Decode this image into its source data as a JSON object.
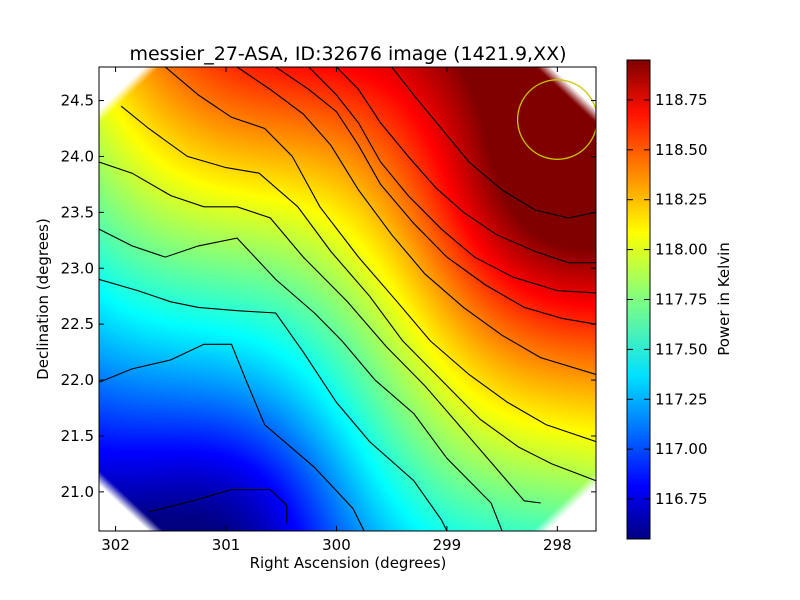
{
  "chart_data": {
    "type": "heatmap",
    "title": "messier_27-ASA, ID:32676 image (1421.9,XX)",
    "xlabel": "Right Ascension (degrees)",
    "ylabel": "Declination (degrees)",
    "xlim": [
      302.15,
      297.65
    ],
    "ylim": [
      20.65,
      24.8
    ],
    "x_ticks": [
      {
        "value": 302,
        "label": "302"
      },
      {
        "value": 301,
        "label": "301"
      },
      {
        "value": 300,
        "label": "300"
      },
      {
        "value": 299,
        "label": "299"
      },
      {
        "value": 298,
        "label": "298"
      }
    ],
    "y_ticks": [
      {
        "value": 21.0,
        "label": "21.0"
      },
      {
        "value": 21.5,
        "label": "21.5"
      },
      {
        "value": 22.0,
        "label": "22.0"
      },
      {
        "value": 22.5,
        "label": "22.5"
      },
      {
        "value": 23.0,
        "label": "23.0"
      },
      {
        "value": 23.5,
        "label": "23.5"
      },
      {
        "value": 24.0,
        "label": "24.0"
      },
      {
        "value": 24.5,
        "label": "24.5"
      }
    ],
    "colorbar": {
      "label": "Power in Kelvin",
      "colormap": "jet",
      "range": [
        116.55,
        118.95
      ],
      "ticks": [
        {
          "value": 116.75,
          "label": "116.75"
        },
        {
          "value": 117.0,
          "label": "117.00"
        },
        {
          "value": 117.25,
          "label": "117.25"
        },
        {
          "value": 117.5,
          "label": "117.50"
        },
        {
          "value": 117.75,
          "label": "117.75"
        },
        {
          "value": 118.0,
          "label": "118.00"
        },
        {
          "value": 118.25,
          "label": "118.25"
        },
        {
          "value": 118.5,
          "label": "118.50"
        },
        {
          "value": 118.75,
          "label": "118.75"
        }
      ]
    },
    "contour_lines": [
      [
        [
          301.7,
          20.82
        ],
        [
          301.3,
          20.92
        ],
        [
          300.95,
          21.02
        ],
        [
          300.6,
          21.02
        ],
        [
          300.45,
          20.88
        ],
        [
          300.45,
          20.72
        ]
      ],
      [
        [
          302.15,
          21.98
        ],
        [
          301.85,
          22.1
        ],
        [
          301.5,
          22.18
        ],
        [
          301.2,
          22.32
        ],
        [
          300.95,
          22.32
        ],
        [
          300.82,
          22.0
        ],
        [
          300.65,
          21.6
        ],
        [
          300.2,
          21.22
        ],
        [
          299.85,
          20.85
        ],
        [
          299.75,
          20.65
        ]
      ],
      [
        [
          302.15,
          22.9
        ],
        [
          301.8,
          22.8
        ],
        [
          301.5,
          22.7
        ],
        [
          301.25,
          22.65
        ],
        [
          300.9,
          22.62
        ],
        [
          300.55,
          22.6
        ],
        [
          300.3,
          22.25
        ],
        [
          300.0,
          21.8
        ],
        [
          299.7,
          21.45
        ],
        [
          299.3,
          21.1
        ],
        [
          299.05,
          20.75
        ],
        [
          299.0,
          20.65
        ]
      ],
      [
        [
          302.15,
          23.35
        ],
        [
          301.85,
          23.2
        ],
        [
          301.55,
          23.1
        ],
        [
          301.25,
          23.2
        ],
        [
          300.9,
          23.27
        ],
        [
          300.55,
          22.9
        ],
        [
          300.2,
          22.6
        ],
        [
          299.95,
          22.35
        ],
        [
          299.65,
          22.0
        ],
        [
          299.3,
          21.7
        ],
        [
          299.0,
          21.3
        ],
        [
          298.6,
          20.9
        ],
        [
          298.5,
          20.65
        ]
      ],
      [
        [
          302.15,
          23.95
        ],
        [
          301.85,
          23.85
        ],
        [
          301.5,
          23.65
        ],
        [
          301.2,
          23.55
        ],
        [
          300.9,
          23.55
        ],
        [
          300.6,
          23.45
        ],
        [
          300.3,
          23.1
        ],
        [
          299.9,
          22.7
        ],
        [
          299.55,
          22.3
        ],
        [
          299.2,
          21.95
        ],
        [
          298.85,
          21.55
        ],
        [
          298.5,
          21.15
        ],
        [
          298.3,
          20.92
        ],
        [
          298.15,
          20.9
        ]
      ],
      [
        [
          301.95,
          24.45
        ],
        [
          301.7,
          24.25
        ],
        [
          301.35,
          24.0
        ],
        [
          301.0,
          23.9
        ],
        [
          300.7,
          23.85
        ],
        [
          300.35,
          23.55
        ],
        [
          300.05,
          23.15
        ],
        [
          299.7,
          22.75
        ],
        [
          299.4,
          22.35
        ],
        [
          299.05,
          22.0
        ],
        [
          298.7,
          21.65
        ],
        [
          298.35,
          21.4
        ],
        [
          298.05,
          21.25
        ],
        [
          297.65,
          21.1
        ]
      ],
      [
        [
          301.55,
          24.8
        ],
        [
          301.25,
          24.55
        ],
        [
          300.95,
          24.35
        ],
        [
          300.65,
          24.25
        ],
        [
          300.4,
          24.0
        ],
        [
          300.15,
          23.55
        ],
        [
          299.8,
          23.1
        ],
        [
          299.45,
          22.7
        ],
        [
          299.15,
          22.35
        ],
        [
          298.8,
          22.05
        ],
        [
          298.45,
          21.8
        ],
        [
          298.1,
          21.6
        ],
        [
          297.65,
          21.45
        ]
      ],
      [
        [
          300.9,
          24.8
        ],
        [
          300.6,
          24.6
        ],
        [
          300.3,
          24.38
        ],
        [
          300.05,
          24.1
        ],
        [
          299.8,
          23.7
        ],
        [
          299.5,
          23.3
        ],
        [
          299.2,
          22.95
        ],
        [
          298.85,
          22.65
        ],
        [
          298.5,
          22.4
        ],
        [
          298.15,
          22.2
        ],
        [
          297.65,
          22.05
        ]
      ],
      [
        [
          300.55,
          24.8
        ],
        [
          300.25,
          24.6
        ],
        [
          300.0,
          24.4
        ],
        [
          299.8,
          24.1
        ],
        [
          299.6,
          23.75
        ],
        [
          299.3,
          23.4
        ],
        [
          299.0,
          23.1
        ],
        [
          298.65,
          22.85
        ],
        [
          298.3,
          22.65
        ],
        [
          297.95,
          22.55
        ],
        [
          297.65,
          22.5
        ]
      ],
      [
        [
          300.25,
          24.8
        ],
        [
          300.0,
          24.55
        ],
        [
          299.8,
          24.3
        ],
        [
          299.6,
          23.95
        ],
        [
          299.35,
          23.65
        ],
        [
          299.05,
          23.35
        ],
        [
          298.75,
          23.1
        ],
        [
          298.4,
          22.92
        ],
        [
          298.0,
          22.8
        ],
        [
          297.65,
          22.78
        ]
      ],
      [
        [
          300.0,
          24.8
        ],
        [
          299.8,
          24.6
        ],
        [
          299.6,
          24.3
        ],
        [
          299.35,
          24.0
        ],
        [
          299.1,
          23.72
        ],
        [
          298.85,
          23.5
        ],
        [
          298.55,
          23.3
        ],
        [
          298.2,
          23.15
        ],
        [
          297.9,
          23.05
        ],
        [
          297.65,
          23.05
        ]
      ],
      [
        [
          299.5,
          24.8
        ],
        [
          299.3,
          24.55
        ],
        [
          299.05,
          24.25
        ],
        [
          298.8,
          23.95
        ],
        [
          298.5,
          23.7
        ],
        [
          298.2,
          23.52
        ],
        [
          297.9,
          23.45
        ],
        [
          297.65,
          23.5
        ]
      ]
    ],
    "circle": {
      "x": 298.0,
      "y": 24.33,
      "radius_deg": 0.36,
      "color": "#c8c800"
    }
  }
}
